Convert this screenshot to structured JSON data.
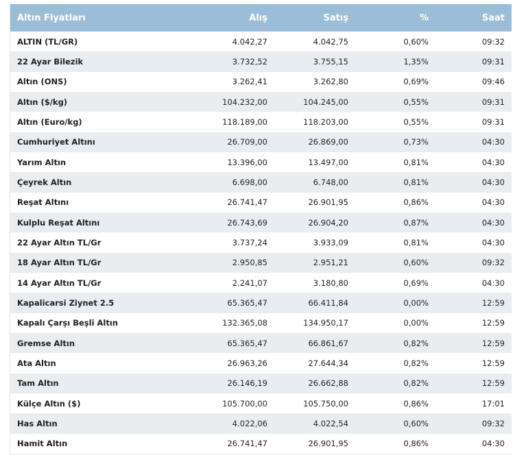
{
  "header": {
    "name": "Altın Fiyatları",
    "buy": "Alış",
    "sell": "Satış",
    "pct": "%",
    "time": "Saat"
  },
  "rows": [
    {
      "name": "ALTIN (TL/GR)",
      "buy": "4.042,27",
      "sell": "4.042,75",
      "pct": "0,60%",
      "time": "09:32"
    },
    {
      "name": "22 Ayar Bilezik",
      "buy": "3.732,52",
      "sell": "3.755,15",
      "pct": "1,35%",
      "time": "09:31"
    },
    {
      "name": "Altın (ONS)",
      "buy": "3.262,41",
      "sell": "3.262,80",
      "pct": "0,69%",
      "time": "09:46"
    },
    {
      "name": "Altın ($/kg)",
      "buy": "104.232,00",
      "sell": "104.245,00",
      "pct": "0,55%",
      "time": "09:31"
    },
    {
      "name": "Altın (Euro/kg)",
      "buy": "118.189,00",
      "sell": "118.203,00",
      "pct": "0,55%",
      "time": "09:31"
    },
    {
      "name": "Cumhuriyet Altını",
      "buy": "26.709,00",
      "sell": "26.869,00",
      "pct": "0,73%",
      "time": "04:30"
    },
    {
      "name": "Yarım Altın",
      "buy": "13.396,00",
      "sell": "13.497,00",
      "pct": "0,81%",
      "time": "04:30"
    },
    {
      "name": "Çeyrek Altın",
      "buy": "6.698,00",
      "sell": "6.748,00",
      "pct": "0,81%",
      "time": "04:30"
    },
    {
      "name": "Reşat Altını",
      "buy": "26.741,47",
      "sell": "26.901,95",
      "pct": "0,86%",
      "time": "04:30"
    },
    {
      "name": "Kulplu Reşat Altını",
      "buy": "26.743,69",
      "sell": "26.904,20",
      "pct": "0,87%",
      "time": "04:30"
    },
    {
      "name": "22 Ayar Altın TL/Gr",
      "buy": "3.737,24",
      "sell": "3.933,09",
      "pct": "0,81%",
      "time": "04:30"
    },
    {
      "name": "18 Ayar Altın TL/Gr",
      "buy": "2.950,85",
      "sell": "2.951,21",
      "pct": "0,60%",
      "time": "09:32"
    },
    {
      "name": "14 Ayar Altın TL/Gr",
      "buy": "2.241,07",
      "sell": "3.180,80",
      "pct": "0,69%",
      "time": "04:30"
    },
    {
      "name": "Kapalicarsi Ziynet 2.5",
      "buy": "65.365,47",
      "sell": "66.411,84",
      "pct": "0,00%",
      "time": "12:59"
    },
    {
      "name": "Kapalı Çarşı Beşli Altın",
      "buy": "132.365,08",
      "sell": "134.950,17",
      "pct": "0,00%",
      "time": "12:59"
    },
    {
      "name": "Gremse Altın",
      "buy": "65.365,47",
      "sell": "66.861,67",
      "pct": "0,82%",
      "time": "12:59"
    },
    {
      "name": "Ata Altın",
      "buy": "26.963,26",
      "sell": "27.644,34",
      "pct": "0,82%",
      "time": "12:59"
    },
    {
      "name": "Tam Altın",
      "buy": "26.146,19",
      "sell": "26.662,88",
      "pct": "0,82%",
      "time": "12:59"
    },
    {
      "name": "Külçe Altın ($)",
      "buy": "105.700,00",
      "sell": "105.750,00",
      "pct": "0,86%",
      "time": "17:01"
    },
    {
      "name": "Has Altın",
      "buy": "4.022,06",
      "sell": "4.022,54",
      "pct": "0,60%",
      "time": "09:32"
    },
    {
      "name": "Hamit Altın",
      "buy": "26.741,47",
      "sell": "26.901,95",
      "pct": "0,86%",
      "time": "04:30"
    }
  ]
}
